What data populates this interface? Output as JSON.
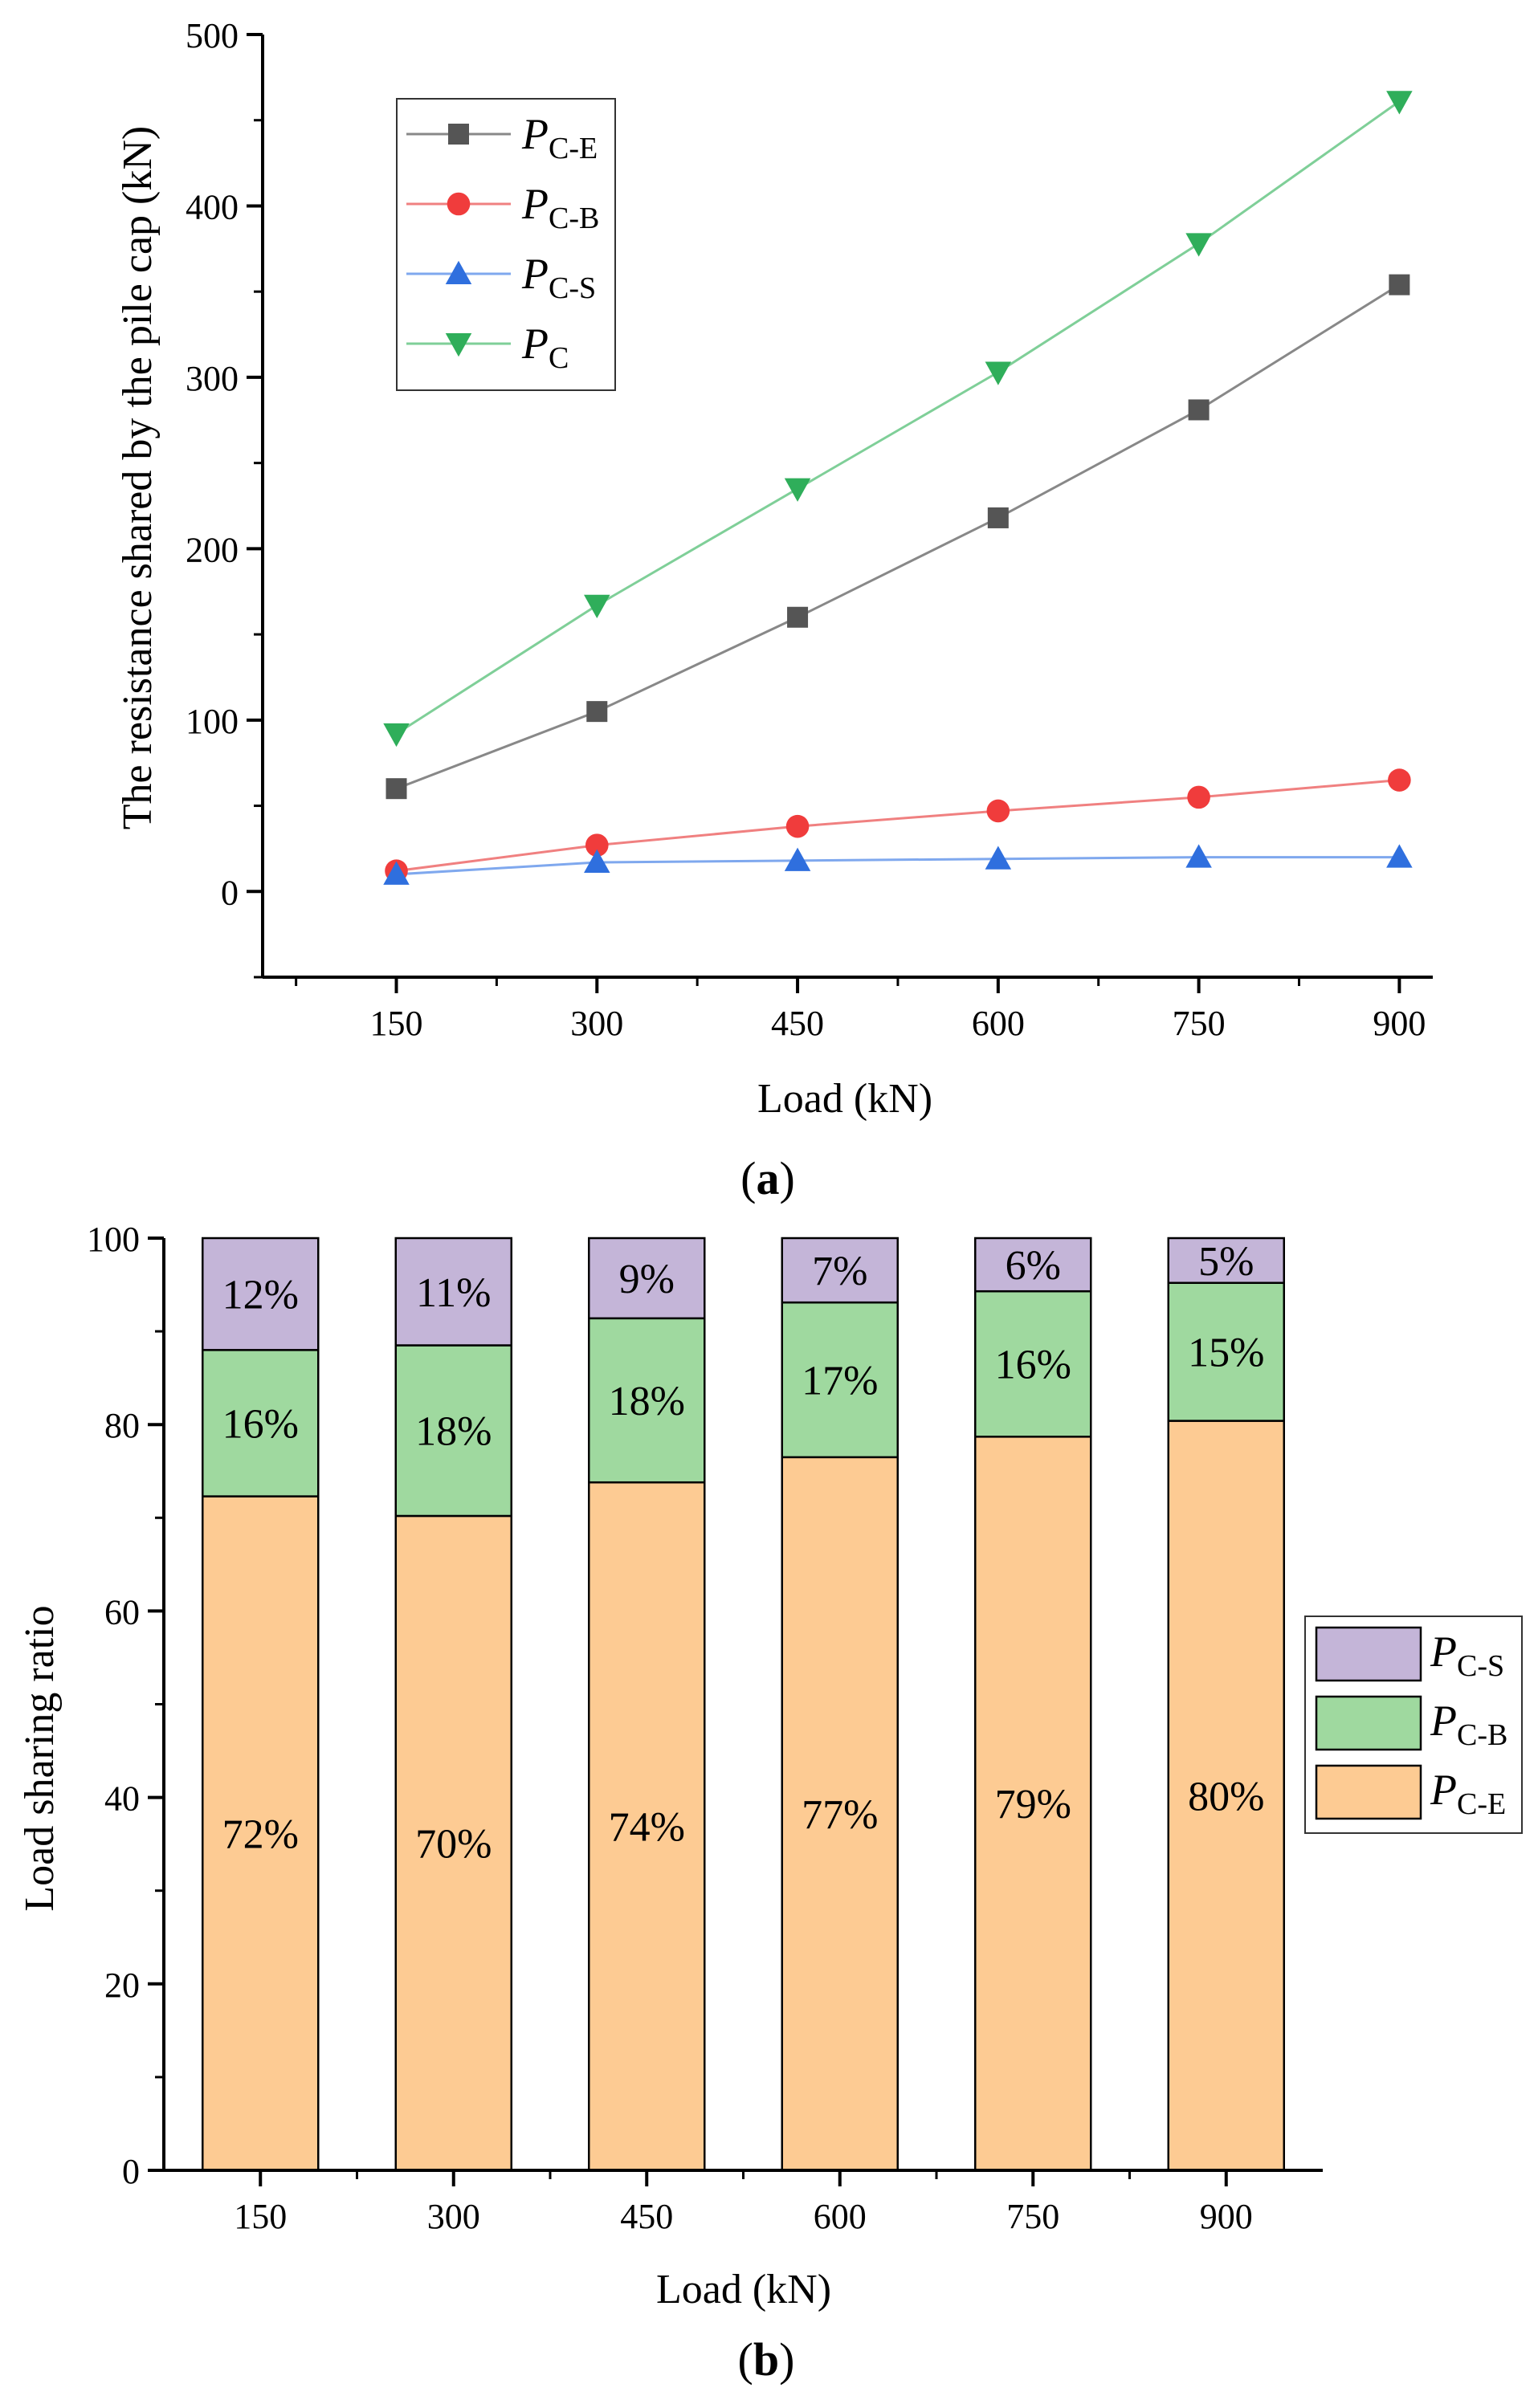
{
  "chart_data": [
    {
      "type": "line",
      "panel_label": "a",
      "xlabel": "Load (kN)",
      "ylabel": "The resistance shared by the pile cap (kN)",
      "x": [
        150,
        300,
        450,
        600,
        750,
        900
      ],
      "xlim": [
        50,
        925
      ],
      "ylim": [
        -50,
        500
      ],
      "xticks": [
        "150",
        "300",
        "450",
        "600",
        "750",
        "900"
      ],
      "yticks": [
        "0",
        "100",
        "200",
        "300",
        "400",
        "500"
      ],
      "legend_position": "top-left",
      "series": [
        {
          "name": "P",
          "sub": "C-E",
          "marker": "square",
          "color": "#555555",
          "line_color": "#888888",
          "values": [
            60,
            105,
            160,
            218,
            281,
            354
          ]
        },
        {
          "name": "P",
          "sub": "C-B",
          "marker": "circle",
          "color": "#f03c3c",
          "line_color": "#f08080",
          "values": [
            12,
            27,
            38,
            47,
            55,
            65
          ]
        },
        {
          "name": "P",
          "sub": "C-S",
          "marker": "triangle-up",
          "color": "#2f6fde",
          "line_color": "#7fa8ee",
          "values": [
            10,
            17,
            18,
            19,
            20,
            20
          ]
        },
        {
          "name": "P",
          "sub": "C",
          "marker": "triangle-down",
          "color": "#2fae5a",
          "line_color": "#7fcf98",
          "values": [
            92,
            167,
            235,
            303,
            378,
            461
          ]
        }
      ]
    },
    {
      "type": "bar",
      "stacked": true,
      "panel_label": "b",
      "xlabel": "Load (kN)",
      "ylabel": "Load sharing ratio",
      "categories": [
        "150",
        "300",
        "450",
        "600",
        "750",
        "900"
      ],
      "ylim": [
        0,
        100
      ],
      "yticks": [
        "0",
        "20",
        "40",
        "60",
        "80",
        "100"
      ],
      "legend_position": "right",
      "series": [
        {
          "name": "P",
          "sub": "C-E",
          "color": "#fdcb93",
          "values": [
            72.3,
            70.2,
            73.8,
            76.5,
            78.7,
            80.4
          ],
          "labels": [
            "72%",
            "70%",
            "74%",
            "77%",
            "79%",
            "80%"
          ]
        },
        {
          "name": "P",
          "sub": "C-B",
          "color": "#9fd99f",
          "values": [
            15.7,
            18.3,
            17.6,
            16.6,
            15.6,
            14.8
          ],
          "labels": [
            "16%",
            "18%",
            "18%",
            "17%",
            "16%",
            "15%"
          ]
        },
        {
          "name": "P",
          "sub": "C-S",
          "color": "#c4b5d8",
          "values": [
            12.0,
            11.5,
            8.6,
            6.9,
            5.7,
            4.8
          ],
          "labels": [
            "12%",
            "11%",
            "9%",
            "7%",
            "6%",
            "5%"
          ]
        }
      ]
    }
  ]
}
